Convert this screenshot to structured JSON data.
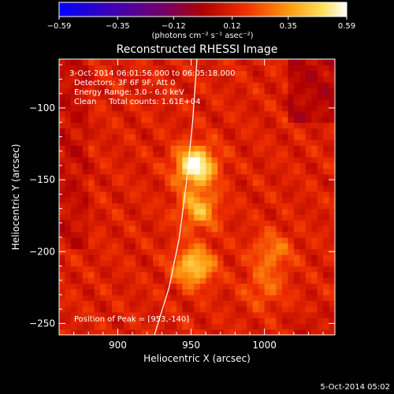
{
  "chart_data": {
    "type": "heatmap",
    "title": "Reconstructed RHESSI Image",
    "xlabel": "Heliocentric X (arcsec)",
    "ylabel": "Heliocentric Y (arcsec)",
    "xlim": [
      860,
      1048
    ],
    "ylim": [
      -258,
      -66
    ],
    "x_ticks": [
      900,
      950,
      1000
    ],
    "x_tick_labels": [
      "900",
      "950",
      "1000"
    ],
    "y_ticks": [
      -100,
      -150,
      -200,
      -250
    ],
    "y_tick_labels": [
      "−100",
      "−150",
      "−200",
      "−250"
    ],
    "colorbar": {
      "range": [
        -0.59,
        0.59
      ],
      "ticks": [
        -0.59,
        -0.35,
        -0.12,
        0.12,
        0.35,
        0.59
      ],
      "tick_labels": [
        "−0.59",
        "−0.35",
        "−0.12",
        "0.12",
        "0.35",
        "0.59"
      ],
      "unit_label": "(photons cm⁻² s⁻¹ asec⁻²)",
      "colors": [
        "#0000ff",
        "#5a00a0",
        "#9c0010",
        "#e41a00",
        "#ff7a00",
        "#ffd040",
        "#ffffff"
      ]
    },
    "annotations": [
      "3-Oct-2014 06:01:56.000 to 06:05:18.000",
      "Detectors: 3F 6F 9F, Att 0",
      "Energy Range: 3.0 - 6.0 keV",
      "Clean     Total counts: 1.61E+04"
    ],
    "peak_label": "Position of Peak = [953,-140]",
    "peak": [
      953,
      -140
    ],
    "sources": [
      {
        "x": 953,
        "y": -140,
        "intensity": 0.59
      },
      {
        "x": 952,
        "y": -210,
        "intensity": 0.45
      },
      {
        "x": 955,
        "y": -170,
        "intensity": 0.38
      },
      {
        "x": 1005,
        "y": -200,
        "intensity": 0.28
      },
      {
        "x": 1000,
        "y": -225,
        "intensity": 0.24
      }
    ],
    "limb_curve": [
      [
        925,
        -258
      ],
      [
        935,
        -225
      ],
      [
        942,
        -190
      ],
      [
        947,
        -150
      ],
      [
        951,
        -110
      ],
      [
        954,
        -66
      ]
    ],
    "grid": false
  },
  "footer_date": "5-Oct-2014 05:02"
}
